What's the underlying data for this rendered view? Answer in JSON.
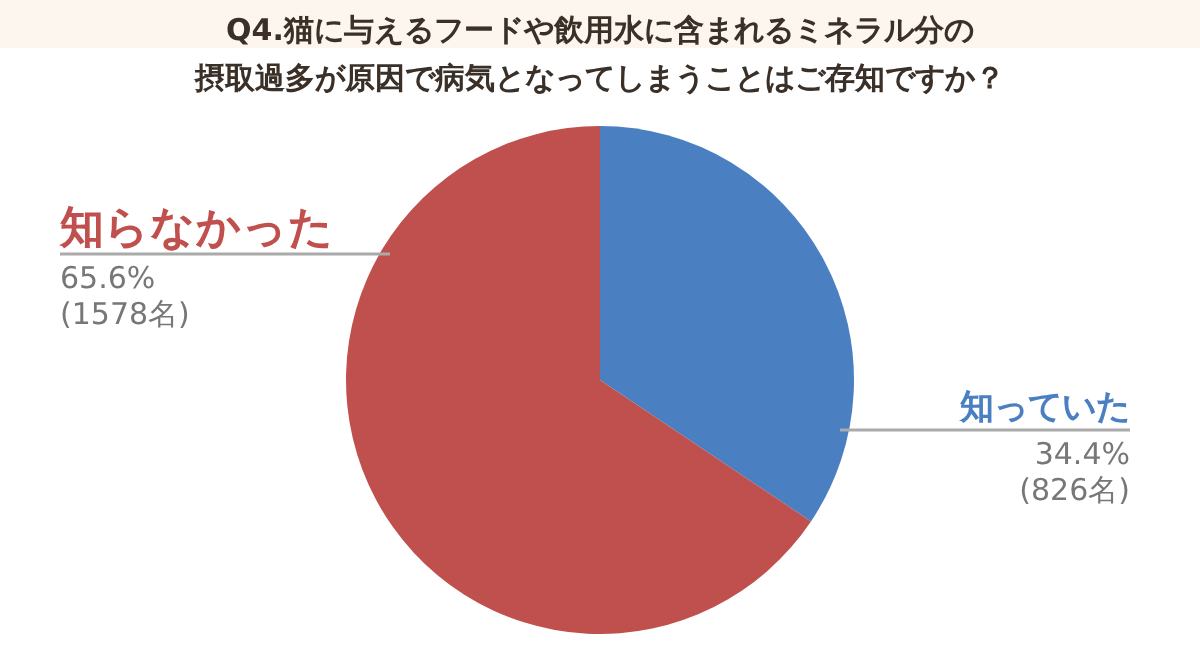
{
  "chart_data": {
    "type": "pie",
    "title": "Q4.猫に与えるフードや飲用水に含まれるミネラル分の摂取過多が原因で病気となってしまうことはご存知ですか？",
    "categories": [
      "知っていた",
      "知らなかった"
    ],
    "values": [
      34.4,
      65.6
    ],
    "colors": [
      "#4a7fc1",
      "#c0504d"
    ],
    "value_labels": [
      "34.4%\n(826名)",
      "65.6%\n(1578名)"
    ]
  }
}
